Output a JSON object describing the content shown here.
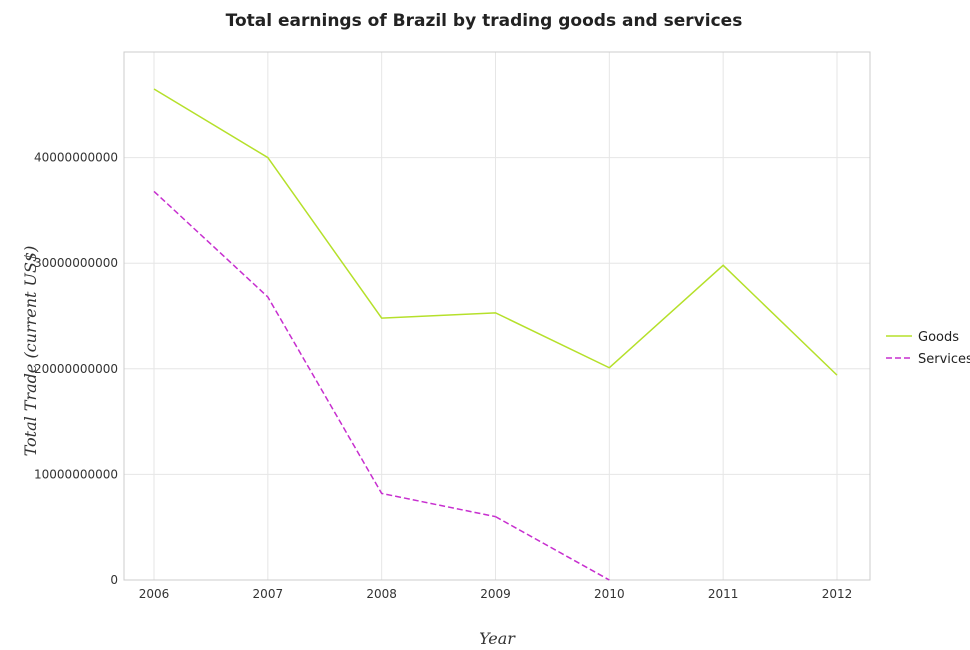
{
  "chart_data": {
    "type": "line",
    "title": "Total earnings of Brazil by trading goods and services",
    "xlabel": "Year",
    "ylabel": "Total Trade (current US$)",
    "categories": [
      "2006",
      "2007",
      "2008",
      "2009",
      "2010",
      "2011",
      "2012"
    ],
    "ylim": [
      0,
      50000000000
    ],
    "yticks": [
      0,
      10000000000,
      20000000000,
      30000000000,
      40000000000
    ],
    "ytick_labels": [
      "0",
      "10000000000",
      "20000000000",
      "30000000000",
      "40000000000"
    ],
    "grid": true,
    "legend_position": "right",
    "series": [
      {
        "name": "Goods",
        "color": "#b5e02a",
        "values": [
          46500000000,
          40000000000,
          24800000000,
          25300000000,
          20100000000,
          29800000000,
          19400000000
        ]
      },
      {
        "name": "Services",
        "color": "#c72fcf",
        "values": [
          36800000000,
          26800000000,
          8200000000,
          6000000000,
          null,
          null,
          null
        ]
      }
    ]
  }
}
